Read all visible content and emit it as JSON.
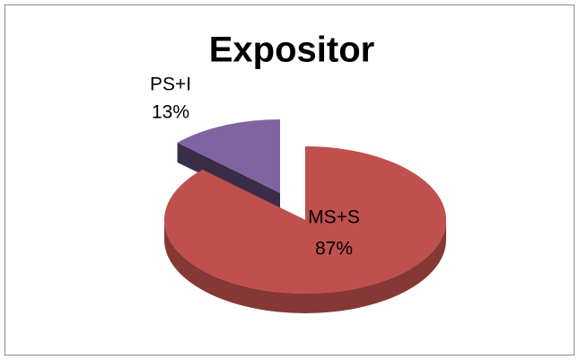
{
  "chart_data": {
    "type": "pie",
    "title": "Expositor",
    "categories": [
      "MS+S",
      "PS+I"
    ],
    "values": [
      87,
      13
    ],
    "value_labels": [
      "87%",
      "13%"
    ],
    "colors": [
      "#c0504d",
      "#8064a2"
    ]
  }
}
